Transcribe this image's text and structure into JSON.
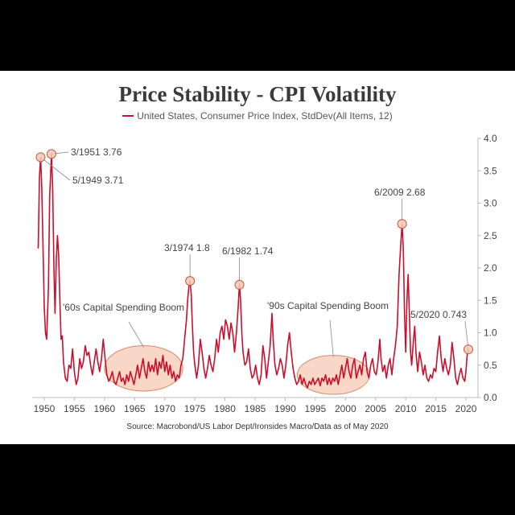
{
  "chart_data": {
    "type": "line",
    "title": "Price Stability - CPI Volatility",
    "legend": [
      {
        "label": "United States, Consumer Price Index, StdDev(All Items, 12)",
        "color": "#c8102e"
      }
    ],
    "source": "Source: Macrobond/US Labor Dept/Ironsides Macro/Data as of May 2020",
    "xlim": [
      1948,
      2022
    ],
    "ylim": [
      0,
      4
    ],
    "x_ticks": [
      1950,
      1955,
      1960,
      1965,
      1970,
      1975,
      1980,
      1985,
      1990,
      1995,
      2000,
      2005,
      2010,
      2015,
      2020
    ],
    "y_ticks": [
      "0.0",
      "0.5",
      "1.0",
      "1.5",
      "2.0",
      "2.5",
      "3.0",
      "3.5",
      "4.0"
    ],
    "y_axis_side": "right",
    "series": [
      {
        "name": "United States, Consumer Price Index, StdDev(All Items, 12)",
        "color": "#c8102e",
        "points": [
          [
            1949.0,
            2.3
          ],
          [
            1949.2,
            3.4
          ],
          [
            1949.4,
            3.71
          ],
          [
            1949.6,
            3.2
          ],
          [
            1949.8,
            2.3
          ],
          [
            1950.0,
            1.4
          ],
          [
            1950.2,
            1.0
          ],
          [
            1950.4,
            0.9
          ],
          [
            1950.7,
            1.7
          ],
          [
            1950.9,
            3.1
          ],
          [
            1951.2,
            3.76
          ],
          [
            1951.4,
            3.2
          ],
          [
            1951.6,
            2.0
          ],
          [
            1951.8,
            1.3
          ],
          [
            1952.0,
            2.1
          ],
          [
            1952.2,
            2.5
          ],
          [
            1952.4,
            2.2
          ],
          [
            1952.6,
            1.5
          ],
          [
            1952.8,
            0.9
          ],
          [
            1953.0,
            0.95
          ],
          [
            1953.2,
            0.55
          ],
          [
            1953.5,
            0.3
          ],
          [
            1953.8,
            0.25
          ],
          [
            1954.1,
            0.5
          ],
          [
            1954.4,
            0.45
          ],
          [
            1954.7,
            0.75
          ],
          [
            1955.0,
            0.4
          ],
          [
            1955.3,
            0.2
          ],
          [
            1955.6,
            0.3
          ],
          [
            1955.9,
            0.6
          ],
          [
            1956.2,
            0.45
          ],
          [
            1956.5,
            0.55
          ],
          [
            1956.8,
            0.8
          ],
          [
            1957.1,
            0.65
          ],
          [
            1957.4,
            0.7
          ],
          [
            1957.7,
            0.5
          ],
          [
            1958.0,
            0.35
          ],
          [
            1958.3,
            0.55
          ],
          [
            1958.6,
            0.75
          ],
          [
            1958.9,
            0.55
          ],
          [
            1959.2,
            0.4
          ],
          [
            1959.5,
            0.6
          ],
          [
            1959.8,
            0.9
          ],
          [
            1960.1,
            0.6
          ],
          [
            1960.4,
            0.35
          ],
          [
            1960.7,
            0.25
          ],
          [
            1961.0,
            0.3
          ],
          [
            1961.3,
            0.4
          ],
          [
            1961.6,
            0.25
          ],
          [
            1961.9,
            0.2
          ],
          [
            1962.2,
            0.3
          ],
          [
            1962.5,
            0.4
          ],
          [
            1962.8,
            0.25
          ],
          [
            1963.1,
            0.3
          ],
          [
            1963.4,
            0.2
          ],
          [
            1963.7,
            0.35
          ],
          [
            1964.0,
            0.25
          ],
          [
            1964.3,
            0.4
          ],
          [
            1964.6,
            0.3
          ],
          [
            1964.9,
            0.2
          ],
          [
            1965.2,
            0.35
          ],
          [
            1965.5,
            0.5
          ],
          [
            1965.8,
            0.3
          ],
          [
            1966.1,
            0.45
          ],
          [
            1966.4,
            0.6
          ],
          [
            1966.7,
            0.4
          ],
          [
            1967.0,
            0.3
          ],
          [
            1967.3,
            0.55
          ],
          [
            1967.6,
            0.4
          ],
          [
            1967.9,
            0.5
          ],
          [
            1968.2,
            0.4
          ],
          [
            1968.5,
            0.6
          ],
          [
            1968.8,
            0.35
          ],
          [
            1969.1,
            0.55
          ],
          [
            1969.4,
            0.45
          ],
          [
            1969.7,
            0.65
          ],
          [
            1970.0,
            0.4
          ],
          [
            1970.3,
            0.55
          ],
          [
            1970.6,
            0.35
          ],
          [
            1970.9,
            0.5
          ],
          [
            1971.2,
            0.3
          ],
          [
            1971.5,
            0.4
          ],
          [
            1971.8,
            0.25
          ],
          [
            1972.1,
            0.35
          ],
          [
            1972.4,
            0.3
          ],
          [
            1972.7,
            0.5
          ],
          [
            1973.0,
            0.6
          ],
          [
            1973.3,
            0.9
          ],
          [
            1973.6,
            1.2
          ],
          [
            1973.8,
            1.5
          ],
          [
            1974.0,
            1.7
          ],
          [
            1974.2,
            1.8
          ],
          [
            1974.4,
            1.6
          ],
          [
            1974.6,
            1.1
          ],
          [
            1974.8,
            0.7
          ],
          [
            1975.0,
            0.5
          ],
          [
            1975.3,
            0.3
          ],
          [
            1975.6,
            0.5
          ],
          [
            1975.9,
            0.9
          ],
          [
            1976.2,
            0.7
          ],
          [
            1976.5,
            0.45
          ],
          [
            1976.8,
            0.3
          ],
          [
            1977.1,
            0.45
          ],
          [
            1977.4,
            0.65
          ],
          [
            1977.7,
            0.5
          ],
          [
            1978.0,
            0.4
          ],
          [
            1978.3,
            0.6
          ],
          [
            1978.6,
            0.9
          ],
          [
            1978.9,
            0.7
          ],
          [
            1979.2,
            1.0
          ],
          [
            1979.5,
            1.1
          ],
          [
            1979.8,
            0.9
          ],
          [
            1980.1,
            1.2
          ],
          [
            1980.4,
            1.1
          ],
          [
            1980.7,
            0.9
          ],
          [
            1981.0,
            1.15
          ],
          [
            1981.3,
            1.0
          ],
          [
            1981.6,
            0.7
          ],
          [
            1981.9,
            1.0
          ],
          [
            1982.2,
            1.4
          ],
          [
            1982.4,
            1.74
          ],
          [
            1982.6,
            1.5
          ],
          [
            1982.8,
            1.0
          ],
          [
            1983.0,
            0.7
          ],
          [
            1983.3,
            0.5
          ],
          [
            1983.6,
            0.55
          ],
          [
            1983.9,
            0.75
          ],
          [
            1984.2,
            0.45
          ],
          [
            1984.5,
            0.3
          ],
          [
            1984.8,
            0.35
          ],
          [
            1985.1,
            0.5
          ],
          [
            1985.4,
            0.3
          ],
          [
            1985.7,
            0.2
          ],
          [
            1986.0,
            0.35
          ],
          [
            1986.3,
            0.8
          ],
          [
            1986.6,
            0.6
          ],
          [
            1986.9,
            0.3
          ],
          [
            1987.2,
            0.55
          ],
          [
            1987.5,
            0.8
          ],
          [
            1987.8,
            1.3
          ],
          [
            1988.0,
            0.9
          ],
          [
            1988.3,
            0.5
          ],
          [
            1988.6,
            0.35
          ],
          [
            1988.9,
            0.45
          ],
          [
            1989.2,
            0.6
          ],
          [
            1989.5,
            0.5
          ],
          [
            1989.8,
            0.3
          ],
          [
            1990.1,
            0.5
          ],
          [
            1990.4,
            0.8
          ],
          [
            1990.7,
            1.0
          ],
          [
            1991.0,
            0.7
          ],
          [
            1991.3,
            0.45
          ],
          [
            1991.6,
            0.3
          ],
          [
            1991.9,
            0.2
          ],
          [
            1992.2,
            0.25
          ],
          [
            1992.5,
            0.35
          ],
          [
            1992.8,
            0.2
          ],
          [
            1993.1,
            0.3
          ],
          [
            1993.4,
            0.2
          ],
          [
            1993.7,
            0.15
          ],
          [
            1994.0,
            0.25
          ],
          [
            1994.3,
            0.2
          ],
          [
            1994.6,
            0.3
          ],
          [
            1994.9,
            0.2
          ],
          [
            1995.2,
            0.25
          ],
          [
            1995.5,
            0.3
          ],
          [
            1995.8,
            0.18
          ],
          [
            1996.1,
            0.3
          ],
          [
            1996.4,
            0.25
          ],
          [
            1996.7,
            0.35
          ],
          [
            1997.0,
            0.2
          ],
          [
            1997.3,
            0.3
          ],
          [
            1997.6,
            0.2
          ],
          [
            1997.9,
            0.3
          ],
          [
            1998.2,
            0.25
          ],
          [
            1998.5,
            0.35
          ],
          [
            1998.8,
            0.2
          ],
          [
            1999.1,
            0.35
          ],
          [
            1999.4,
            0.5
          ],
          [
            1999.7,
            0.3
          ],
          [
            2000.0,
            0.45
          ],
          [
            2000.3,
            0.6
          ],
          [
            2000.6,
            0.4
          ],
          [
            2000.9,
            0.3
          ],
          [
            2001.2,
            0.5
          ],
          [
            2001.5,
            0.6
          ],
          [
            2001.8,
            0.3
          ],
          [
            2002.1,
            0.4
          ],
          [
            2002.4,
            0.5
          ],
          [
            2002.7,
            0.35
          ],
          [
            2003.0,
            0.6
          ],
          [
            2003.3,
            0.7
          ],
          [
            2003.6,
            0.4
          ],
          [
            2003.9,
            0.3
          ],
          [
            2004.2,
            0.5
          ],
          [
            2004.5,
            0.6
          ],
          [
            2004.8,
            0.4
          ],
          [
            2005.1,
            0.35
          ],
          [
            2005.4,
            0.55
          ],
          [
            2005.7,
            0.9
          ],
          [
            2005.9,
            0.6
          ],
          [
            2006.2,
            0.4
          ],
          [
            2006.5,
            0.5
          ],
          [
            2006.8,
            0.3
          ],
          [
            2007.1,
            0.5
          ],
          [
            2007.4,
            0.6
          ],
          [
            2007.7,
            0.35
          ],
          [
            2008.0,
            0.6
          ],
          [
            2008.3,
            0.8
          ],
          [
            2008.6,
            1.1
          ],
          [
            2008.9,
            1.9
          ],
          [
            2009.2,
            2.4
          ],
          [
            2009.4,
            2.68
          ],
          [
            2009.6,
            2.3
          ],
          [
            2009.8,
            1.3
          ],
          [
            2010.0,
            0.7
          ],
          [
            2010.2,
            1.5
          ],
          [
            2010.4,
            1.9
          ],
          [
            2010.6,
            1.3
          ],
          [
            2010.8,
            0.7
          ],
          [
            2011.0,
            0.5
          ],
          [
            2011.3,
            0.9
          ],
          [
            2011.5,
            1.1
          ],
          [
            2011.7,
            0.7
          ],
          [
            2012.0,
            0.4
          ],
          [
            2012.3,
            0.7
          ],
          [
            2012.6,
            0.55
          ],
          [
            2012.9,
            0.35
          ],
          [
            2013.2,
            0.5
          ],
          [
            2013.5,
            0.3
          ],
          [
            2013.8,
            0.25
          ],
          [
            2014.1,
            0.35
          ],
          [
            2014.4,
            0.3
          ],
          [
            2014.7,
            0.45
          ],
          [
            2015.0,
            0.4
          ],
          [
            2015.3,
            0.7
          ],
          [
            2015.6,
            0.95
          ],
          [
            2015.9,
            0.6
          ],
          [
            2016.2,
            0.4
          ],
          [
            2016.5,
            0.6
          ],
          [
            2016.8,
            0.45
          ],
          [
            2017.1,
            0.35
          ],
          [
            2017.4,
            0.5
          ],
          [
            2017.7,
            0.85
          ],
          [
            2018.0,
            0.6
          ],
          [
            2018.3,
            0.3
          ],
          [
            2018.6,
            0.2
          ],
          [
            2018.9,
            0.35
          ],
          [
            2019.2,
            0.45
          ],
          [
            2019.5,
            0.3
          ],
          [
            2019.8,
            0.25
          ],
          [
            2020.0,
            0.4
          ],
          [
            2020.2,
            0.65
          ],
          [
            2020.4,
            0.743
          ]
        ]
      }
    ],
    "annotations": [
      {
        "label": "3/1951 3.76",
        "x": 1951.2,
        "y": 3.76
      },
      {
        "label": "5/1949 3.71",
        "x": 1949.4,
        "y": 3.71
      },
      {
        "label": "3/1974 1.8",
        "x": 1974.2,
        "y": 1.8
      },
      {
        "label": "6/1982 1.74",
        "x": 1982.4,
        "y": 1.74
      },
      {
        "label": "6/2009 2.68",
        "x": 2009.4,
        "y": 2.68
      },
      {
        "label": "5/2020 0.743",
        "x": 2020.4,
        "y": 0.743
      }
    ],
    "highlights": [
      {
        "label": "'60s Capital Spending Boom",
        "x_range": [
          1960.0,
          1973.0
        ],
        "y_range": [
          0.1,
          0.8
        ]
      },
      {
        "label": "'90s Capital Spending Boom",
        "x_range": [
          1992.0,
          2004.0
        ],
        "y_range": [
          0.05,
          0.65
        ]
      }
    ]
  }
}
